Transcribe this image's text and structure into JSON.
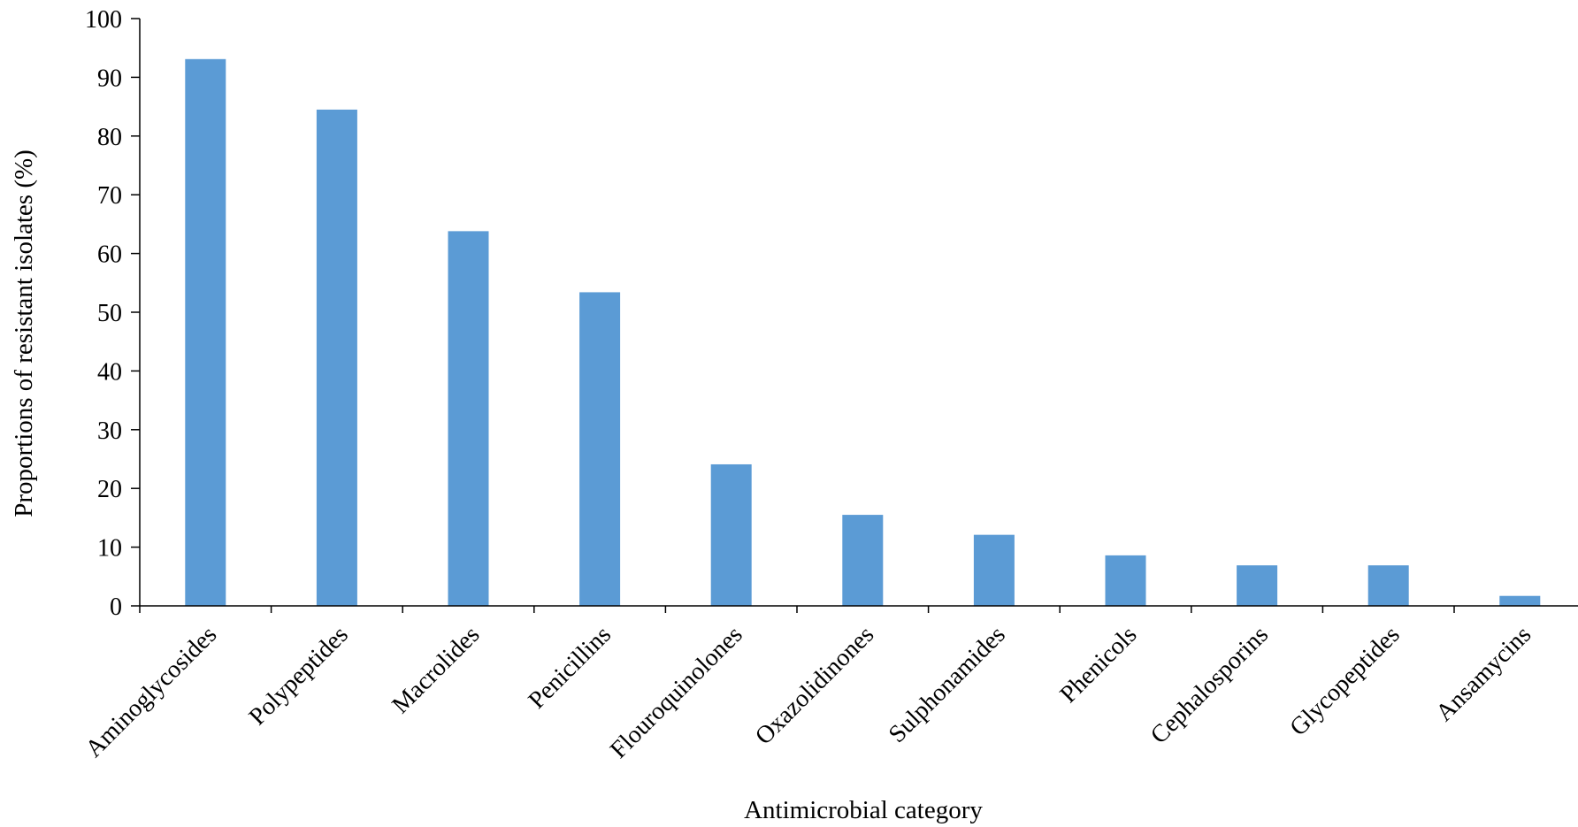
{
  "chart_data": {
    "type": "bar",
    "title": "",
    "xlabel": "Antimicrobial category",
    "ylabel": "Proportions of resistant isolates (%)",
    "ylim": [
      0,
      100
    ],
    "yticks": [
      0,
      10,
      20,
      30,
      40,
      50,
      60,
      70,
      80,
      90,
      100
    ],
    "grid": false,
    "legend": "none",
    "bar_color": "#5B9BD5",
    "categories": [
      "Aminoglycosides",
      "Polypeptides",
      "Macrolides",
      "Penicillins",
      "Flouroquinolones",
      "Oxazolidinones",
      "Sulphonamides",
      "Phenicols",
      "Cephalosporins",
      "Glycopeptides",
      "Ansamycins"
    ],
    "values": [
      93.1,
      84.5,
      63.8,
      53.4,
      24.1,
      15.5,
      12.1,
      8.6,
      6.9,
      6.9,
      1.7
    ]
  }
}
